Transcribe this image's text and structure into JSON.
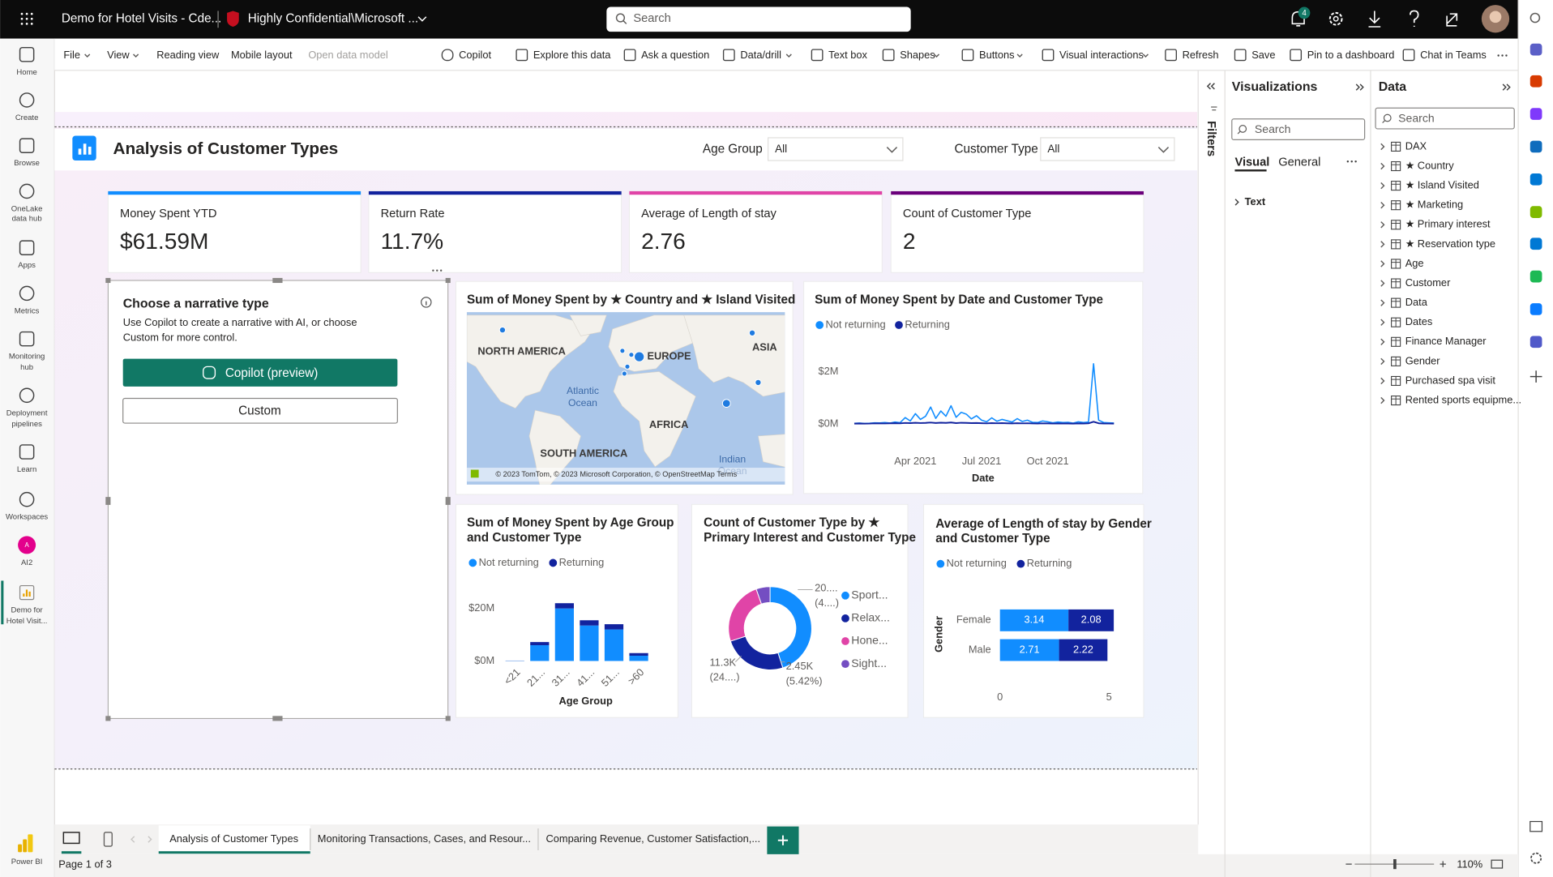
{
  "app": {
    "report_name": "Demo for Hotel Visits - Cde...",
    "sensitivity": "Highly Confidential\\Microsoft ...",
    "search_placeholder": "Search",
    "notification_count": 4
  },
  "nav": [
    {
      "label": [
        "Home"
      ]
    },
    {
      "label": [
        "Create"
      ]
    },
    {
      "label": [
        "Browse"
      ]
    },
    {
      "label": [
        "OneLake",
        "data hub"
      ]
    },
    {
      "label": [
        "Apps"
      ]
    },
    {
      "label": [
        "Metrics"
      ]
    },
    {
      "label": [
        "Monitoring",
        "hub"
      ]
    },
    {
      "label": [
        "Deployment",
        "pipelines"
      ]
    },
    {
      "label": [
        "Learn"
      ]
    },
    {
      "label": [
        "Workspaces"
      ]
    },
    {
      "label": [
        "AI2"
      ],
      "badge": "A"
    },
    {
      "label": [
        "Demo for",
        "Hotel Visit..."
      ]
    }
  ],
  "brand": "Power BI",
  "toolbar": [
    "File",
    "View",
    "Reading view",
    "Mobile layout",
    "Open data model",
    "Copilot",
    "Explore this data",
    "Ask a question",
    "Data/drill",
    "Text box",
    "Shapes",
    "Buttons",
    "Visual interactions",
    "Refresh",
    "Save",
    "Pin to a dashboard",
    "Chat in Teams"
  ],
  "report": {
    "title": "Analysis of Customer Types",
    "filters": [
      {
        "label": "Age Group",
        "value": "All"
      },
      {
        "label": "Customer Type",
        "value": "All"
      }
    ],
    "kpis": [
      {
        "label": "Money Spent YTD",
        "value": "$61.59M",
        "accent": "#118dff"
      },
      {
        "label": "Return Rate",
        "value": "11.7%",
        "accent": "#12239e"
      },
      {
        "label": "Average of Length of stay",
        "value": "2.76",
        "accent": "#e044a7"
      },
      {
        "label": "Count of Customer Type",
        "value": "2",
        "accent": "#6b007b"
      }
    ],
    "narrative": {
      "title": "Choose a narrative type",
      "text": [
        "Use Copilot to create a narrative with AI, or choose",
        "Custom for more control."
      ],
      "copilot_button": "Copilot (preview)",
      "custom_button": "Custom"
    },
    "map": {
      "title": "Sum of Money Spent by ★ Country and ★ Island Visited",
      "labels": [
        "NORTH AMERICA",
        "EUROPE",
        "ASIA",
        "Atlantic",
        "Ocean",
        "AFRICA",
        "SOUTH AMERICA",
        "Indian",
        "Ocean"
      ],
      "attribution": "© 2023 TomTom, © 2023 Microsoft Corporation, © OpenStreetMap Terms"
    },
    "line_chart": {
      "type": "line",
      "title": "Sum of Money Spent by Date and Customer Type",
      "categories": [
        null,
        null,
        null,
        null,
        null,
        null,
        null,
        null,
        null,
        null,
        null,
        null,
        null,
        null,
        null,
        null,
        null,
        null,
        null,
        null,
        null,
        null,
        null,
        null,
        null,
        null,
        null,
        null,
        null,
        null,
        null,
        null,
        null,
        null,
        null,
        null,
        null,
        null,
        null,
        null,
        null,
        null,
        null,
        null,
        null,
        null,
        null,
        null,
        null,
        null,
        null,
        null
      ],
      "series": [
        {
          "name": "Not returning",
          "color": "#118dff",
          "values": [
            30000,
            40000,
            25000,
            35000,
            50000,
            45000,
            60000,
            40000,
            80000,
            55000,
            250000,
            120000,
            400000,
            180000,
            300000,
            650000,
            220000,
            500000,
            300000,
            700000,
            260000,
            450000,
            380000,
            200000,
            320000,
            150000,
            90000,
            240000,
            110000,
            180000,
            130000,
            80000,
            210000,
            100000,
            150000,
            70000,
            60000,
            120000,
            90000,
            50000,
            80000,
            60000,
            70000,
            40000,
            90000,
            60000,
            80000,
            2300000,
            150000,
            60000,
            50000,
            40000
          ]
        },
        {
          "name": "Returning",
          "color": "#12239e",
          "values": [
            20000,
            25000,
            18000,
            22000,
            30000,
            28000,
            26000,
            32000,
            35000,
            30000,
            45000,
            38000,
            50000,
            42000,
            48000,
            60000,
            44000,
            55000,
            47000,
            62000,
            40000,
            52000,
            46000,
            38000,
            44000,
            36000,
            30000,
            40000,
            34000,
            38000,
            32000,
            28000,
            36000,
            30000,
            34000,
            26000,
            24000,
            30000,
            28000,
            22000,
            26000,
            24000,
            25000,
            20000,
            28000,
            24000,
            30000,
            90000,
            32000,
            24000,
            22000,
            20000
          ]
        }
      ],
      "xticks": [
        {
          "value": 12,
          "label": "Apr 2021"
        },
        {
          "value": 25,
          "label": "Jul 2021"
        },
        {
          "value": 38,
          "label": "Oct 2021"
        }
      ],
      "x_label": "Date",
      "ylim": [
        0,
        3000000
      ],
      "yticks": [
        {
          "value": 0,
          "label": "$0M"
        },
        {
          "value": 2000000,
          "label": "$2M"
        }
      ],
      "grid": false,
      "legend": "top-left"
    },
    "age_chart": {
      "type": "bar",
      "stacked": true,
      "title": [
        "Sum of Money Spent by Age Group",
        "and Customer Type"
      ],
      "categories": [
        "<21",
        "21...",
        "31...",
        "41...",
        "51...",
        ">60"
      ],
      "series": [
        {
          "name": "Not returning",
          "color": "#118dff",
          "values": [
            100000,
            6000000,
            20000000,
            13500000,
            12000000,
            2000000
          ]
        },
        {
          "name": "Returning",
          "color": "#12239e",
          "values": [
            50000,
            1200000,
            2000000,
            2000000,
            2000000,
            1000000
          ]
        }
      ],
      "x_label": "Age Group",
      "ylim": [
        0,
        25000000
      ],
      "yticks": [
        {
          "value": 0,
          "label": "$0M"
        },
        {
          "value": 20000000,
          "label": "$20M"
        }
      ],
      "grid": false,
      "legend": "top-left"
    },
    "donut_chart": {
      "type": "pie",
      "donut": true,
      "title": [
        "Count of Customer Type by ★",
        "Primary Interest and Customer Type"
      ],
      "categories": [
        "Sport...",
        "Relax...",
        "Hone...",
        "Sight..."
      ],
      "values": [
        20400,
        11300,
        11150,
        2450
      ],
      "colors": [
        "#118dff",
        "#12239e",
        "#e044a7",
        "#744ec2"
      ],
      "annotations": [
        [
          "20....",
          "(4....)"
        ],
        [
          "11.3K",
          "(24....)"
        ],
        [
          "2.45K",
          "(5.42%)"
        ]
      ],
      "legend": "right"
    },
    "gender_chart": {
      "type": "bar",
      "orientation": "horizontal",
      "stacked": true,
      "title": [
        "Average of Length of stay by Gender",
        "and Customer Type"
      ],
      "categories": [
        "Female",
        "Male"
      ],
      "series": [
        {
          "name": "Not returning",
          "color": "#118dff",
          "values": [
            3.14,
            2.71
          ]
        },
        {
          "name": "Returning",
          "color": "#12239e",
          "values": [
            2.08,
            2.22
          ]
        }
      ],
      "y_label": "Gender",
      "xlim": [
        0,
        5.5
      ],
      "xticks": [
        0,
        5
      ],
      "grid": false,
      "legend": "top-left"
    }
  },
  "panes": {
    "filters": "Filters",
    "visualizations": {
      "title": "Visualizations",
      "search": "Search",
      "tabs": [
        "Visual",
        "General"
      ],
      "section": "Text"
    },
    "data": {
      "title": "Data",
      "search": "Search",
      "tables": [
        "DAX",
        "★ Country",
        "★ Island Visited",
        "★ Marketing",
        "★ Primary interest",
        "★ Reservation type",
        "Age",
        "Customer",
        "Data",
        "Dates",
        "Finance Manager",
        "Gender",
        "Purchased spa visit",
        "Rented sports equipme..."
      ]
    }
  },
  "footer": {
    "tabs": [
      "Analysis of Customer Types",
      "Monitoring Transactions, Cases, and Resour...",
      "Comparing Revenue, Customer Satisfaction,..."
    ],
    "page_status": "Page 1 of 3",
    "zoom": "110%"
  }
}
